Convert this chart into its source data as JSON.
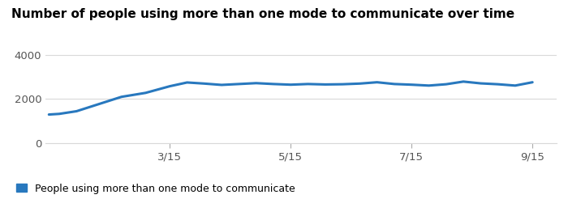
{
  "title": "Number of people using more than one mode to communicate over time",
  "line_color": "#2878BE",
  "background_color": "#ffffff",
  "x_labels": [
    "3/15",
    "5/15",
    "7/15",
    "9/15"
  ],
  "ylim": [
    0,
    4500
  ],
  "yticks": [
    0,
    2000,
    4000
  ],
  "legend_label": "People using more than one mode to communicate",
  "x_values": [
    0,
    0.15,
    0.4,
    0.7,
    1.05,
    1.4,
    1.75,
    2.0,
    2.25,
    2.5,
    2.75,
    3.0,
    3.25,
    3.5,
    3.75,
    4.0,
    4.25,
    4.5,
    4.75,
    5.0,
    5.25,
    5.5,
    5.75,
    6.0,
    6.25,
    6.5,
    6.75,
    7.0
  ],
  "y_values": [
    1300,
    1330,
    1450,
    1750,
    2100,
    2280,
    2580,
    2750,
    2700,
    2640,
    2680,
    2720,
    2680,
    2650,
    2680,
    2660,
    2670,
    2700,
    2760,
    2680,
    2650,
    2610,
    2670,
    2790,
    2710,
    2670,
    2610,
    2760
  ],
  "grid_color": "#d9d9d9",
  "line_width": 2.2,
  "title_fontsize": 11,
  "tick_fontsize": 9.5,
  "legend_fontsize": 9
}
